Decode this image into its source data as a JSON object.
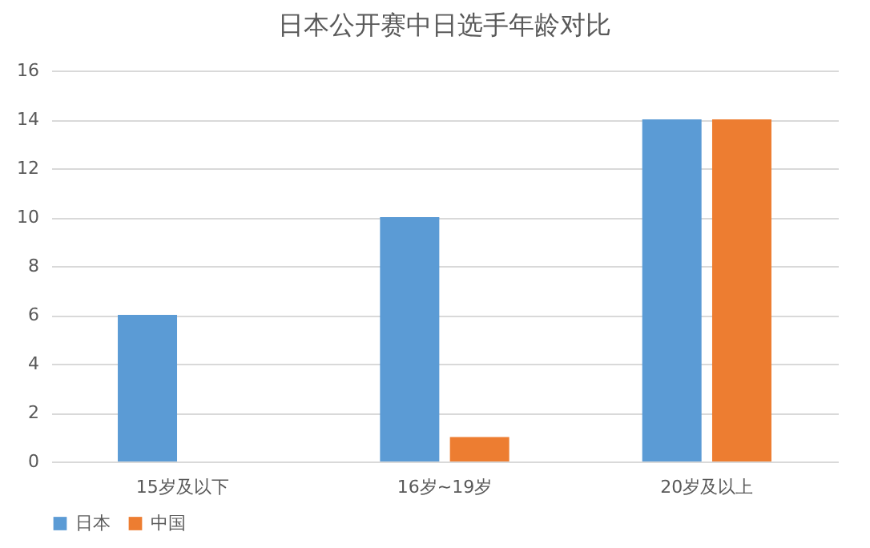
{
  "chart_data": {
    "type": "bar",
    "title": "日本公开赛中日选手年龄对比",
    "categories": [
      "15岁及以下",
      "16岁~19岁",
      "20岁及以上"
    ],
    "series": [
      {
        "name": "日本",
        "color": "#5b9bd5",
        "values": [
          6,
          10,
          14
        ]
      },
      {
        "name": "中国",
        "color": "#ed7d31",
        "values": [
          0,
          1,
          14
        ]
      }
    ],
    "ylim": [
      0,
      16
    ],
    "yticks": [
      0,
      2,
      4,
      6,
      8,
      10,
      12,
      14,
      16
    ],
    "grid": "y",
    "legend": "bottom"
  }
}
